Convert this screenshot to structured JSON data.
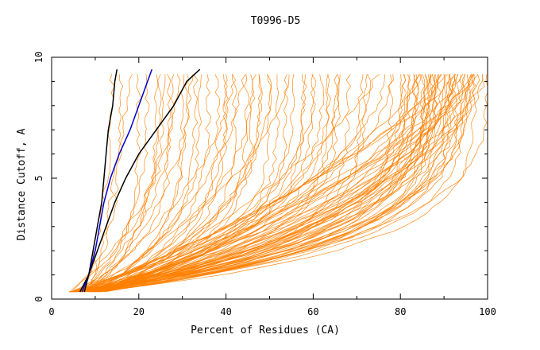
{
  "chart_data": {
    "type": "line",
    "title": "T0996-D5",
    "xlabel": "Percent of Residues (CA)",
    "ylabel": "Distance Cutoff, A",
    "xlim": [
      0,
      100
    ],
    "ylim": [
      0,
      10
    ],
    "x_ticks": [
      0,
      20,
      40,
      60,
      80,
      100
    ],
    "x_tick_labels": [
      "0",
      "20",
      "40",
      "60",
      "80",
      "100"
    ],
    "y_ticks": [
      0,
      5,
      10
    ],
    "y_tick_labels": [
      "0",
      "5",
      "10"
    ],
    "grid": false,
    "legend": "none",
    "colors": {
      "background_model": "#ff8000",
      "highlight_black": "#000000",
      "highlight_blue": "#0000cc"
    },
    "background_note": "approx. 150 orange model curves; final (y=9.5) x-values listed below",
    "background_series_endpoints": [
      14,
      16,
      18,
      20,
      22,
      24,
      25,
      26,
      27,
      28,
      29,
      30,
      31,
      32,
      33,
      34,
      36,
      38,
      40,
      42,
      44,
      46,
      48,
      50,
      52,
      55,
      58,
      60,
      62,
      65,
      66,
      68,
      72,
      75,
      78,
      80,
      82,
      84,
      85,
      86,
      87,
      88,
      89,
      90,
      91,
      92,
      93,
      94,
      95,
      96,
      97,
      98,
      99,
      100
    ],
    "series": [
      {
        "color": "#000000",
        "x": [
          7.5,
          8.5,
          9.5,
          10.5,
          11.5,
          12.0,
          12.5,
          13.0,
          14.0,
          14.5,
          15.0
        ],
        "y": [
          0.3,
          1.0,
          2.0,
          3.0,
          4.0,
          5.0,
          6.0,
          7.0,
          8.0,
          9.0,
          9.5
        ]
      },
      {
        "color": "#0000cc",
        "x": [
          7.0,
          8.5,
          10.0,
          11.0,
          12.0,
          13.5,
          15.5,
          18.0,
          20.0,
          22.0,
          23.0
        ],
        "y": [
          0.3,
          1.0,
          2.0,
          3.0,
          4.0,
          5.0,
          6.0,
          7.0,
          8.0,
          9.0,
          9.5
        ]
      },
      {
        "color": "#000000",
        "x": [
          6.5,
          8.5,
          10.5,
          12.5,
          14.5,
          17.0,
          20.0,
          24.0,
          28.0,
          31.0,
          34.0
        ],
        "y": [
          0.3,
          1.0,
          2.0,
          3.0,
          4.0,
          5.0,
          6.0,
          7.0,
          8.0,
          9.0,
          9.5
        ]
      }
    ]
  }
}
